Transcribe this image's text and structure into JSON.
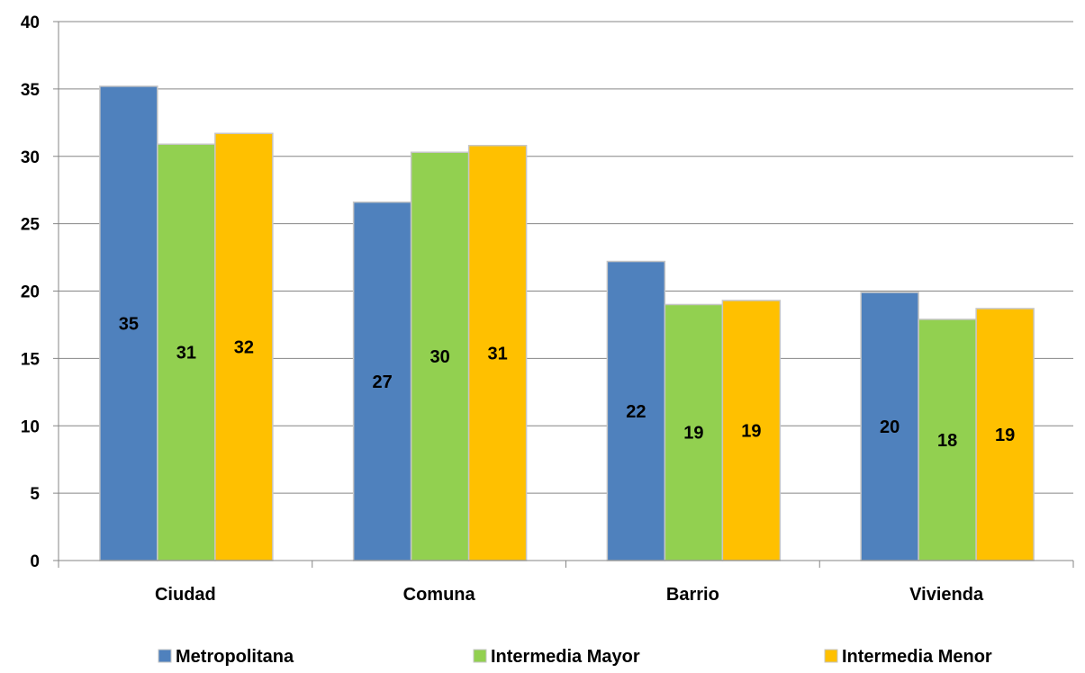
{
  "chart_data": {
    "type": "bar",
    "categories": [
      "Ciudad",
      "Comuna",
      "Barrio",
      "Vivienda"
    ],
    "series": [
      {
        "name": "Metropolitana",
        "color": "#4F81BD",
        "values": [
          35.2,
          26.6,
          22.2,
          19.9
        ],
        "labels": [
          "35",
          "27",
          "22",
          "20"
        ]
      },
      {
        "name": "Intermedia Mayor",
        "color": "#92D050",
        "values": [
          30.9,
          30.3,
          19.0,
          17.9
        ],
        "labels": [
          "31",
          "30",
          "19",
          "18"
        ]
      },
      {
        "name": "Intermedia Menor",
        "color": "#FFC000",
        "values": [
          31.7,
          30.8,
          19.3,
          18.7
        ],
        "labels": [
          "32",
          "31",
          "19",
          "19"
        ]
      }
    ],
    "title": "",
    "xlabel": "",
    "ylabel": "",
    "ylim": [
      0,
      40
    ],
    "yticks": [
      "0",
      "5",
      "10",
      "15",
      "20",
      "25",
      "30",
      "35",
      "40"
    ],
    "grid": true,
    "legend_position": "bottom"
  }
}
